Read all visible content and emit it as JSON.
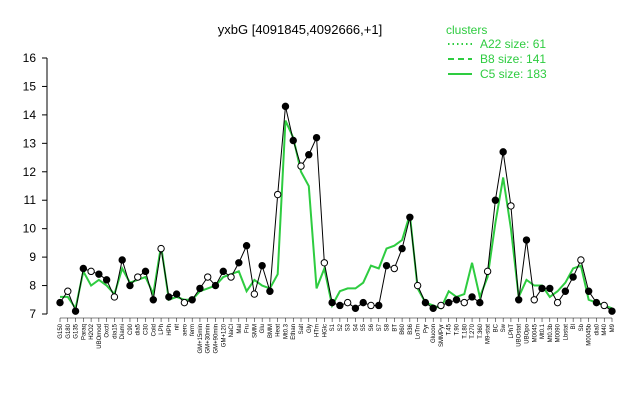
{
  "chart_data": {
    "type": "line",
    "title": "yxbG [4091845,4092666,+1]",
    "ylim": [
      7,
      16
    ],
    "yticks": [
      7,
      8,
      9,
      10,
      11,
      12,
      13,
      14,
      15,
      16
    ],
    "x_ticks": [
      "G150",
      "G180",
      "G135",
      "Paraq",
      "H2O2",
      "UBOmod",
      "Oxctl",
      "dia15",
      "Diami",
      "C90",
      "dia5",
      "C30",
      "Cold",
      "LPh",
      "HPh",
      "nit",
      "aero",
      "ferm",
      "GM+15min",
      "GM+30min",
      "GM+90min",
      "GM+120",
      "NaCl",
      "Mal",
      "Fru",
      "SMM",
      "Glu",
      "BMM",
      "Heat",
      "Mt0.3",
      "Ethan",
      "Salt",
      "Gly",
      "HTm",
      "HGlc",
      "S1",
      "S2",
      "S3",
      "S4",
      "S5",
      "S6",
      "S7",
      "S8",
      "BT",
      "B60",
      "B36",
      "LoTm",
      "Pyr",
      "Glucon",
      "SMMPyr",
      "T.45",
      "T.90",
      "T.180",
      "T.270",
      "T.360",
      "M9-stat",
      "BC",
      "Sw",
      "LPhT",
      "UBOstat",
      "UBOpo",
      "M0045",
      "Mt0.1",
      "Mt0.3b",
      "M0090",
      "Lbstat",
      "Bl",
      "Sb",
      "M0045b",
      "dia0",
      "M40",
      "M9"
    ],
    "x_tick_labels_shown": [
      "G150",
      "G180",
      "G135",
      "Paraq",
      "H2O2",
      "UBOmod",
      "Oxctl",
      "dia15",
      "Diami",
      "C90",
      "dia5",
      "C30",
      "Cold",
      "LPh",
      "HPh",
      "nit",
      "aero",
      "ferm",
      "GM+15min",
      "GM+30min",
      "GM+90min",
      "GM+120",
      "NaCl",
      "Mal",
      "Fru",
      "SMM",
      "Glu",
      "BMM",
      "Heat",
      "Mt0.3",
      "Ethan",
      "Salt",
      "Gly",
      "HTm",
      "HGlc",
      "S1",
      "S2",
      "S3",
      "S4",
      "S5",
      "S6",
      "S7",
      "S8",
      "BT",
      "B60",
      "B36",
      "LoTm",
      "Pyr",
      "Glucon",
      "SMMPyr",
      "T.45",
      "T.90",
      "T.180",
      "T.270",
      "T.360",
      "M9-stat",
      "BC",
      "Sw",
      "LPhT",
      "UBOstat",
      "UBOpo",
      "M0045",
      "Mt0.1",
      "Mt0.3b",
      "M0090",
      "Lbstat",
      "Bl",
      "Sb",
      "M0045b",
      "dia0",
      "M40",
      "M9"
    ],
    "legend": {
      "title": "clusters",
      "placement": "top-right",
      "entries": [
        {
          "label": "A22 size: 61",
          "style": "dotted"
        },
        {
          "label": "B8 size: 141",
          "style": "dashed"
        },
        {
          "label": "C5 size: 183",
          "style": "solid"
        }
      ]
    },
    "series": [
      {
        "name": "",
        "style": "black-points",
        "values": [
          7.4,
          7.8,
          7.1,
          8.6,
          8.5,
          8.4,
          8.2,
          7.6,
          8.9,
          8.0,
          8.3,
          8.5,
          7.5,
          9.3,
          7.6,
          7.7,
          7.4,
          7.5,
          7.9,
          8.3,
          8.0,
          8.5,
          8.3,
          8.8,
          9.4,
          7.7,
          8.7,
          7.8,
          11.2,
          14.3,
          13.1,
          12.2,
          12.6,
          13.2,
          8.8,
          7.4,
          7.3,
          7.4,
          7.2,
          7.4,
          7.3,
          7.3,
          8.7,
          8.6,
          9.3,
          10.4,
          8.0,
          7.4,
          7.2,
          7.3,
          7.4,
          7.5,
          7.4,
          7.6,
          7.4,
          8.5,
          11.0,
          12.7,
          10.8,
          7.5,
          9.6,
          7.5,
          7.9,
          7.9,
          7.4,
          7.8,
          8.3,
          8.9,
          7.8,
          7.4,
          7.3,
          7.1
        ]
      },
      {
        "name": "",
        "style": "green-cluster-line",
        "values": [
          7.6,
          7.6,
          7.2,
          8.5,
          8.0,
          8.2,
          8.0,
          7.7,
          8.6,
          8.1,
          8.2,
          8.3,
          7.7,
          9.4,
          7.5,
          7.6,
          7.5,
          7.5,
          7.8,
          7.9,
          8.0,
          8.3,
          8.4,
          8.5,
          7.8,
          8.2,
          8.0,
          7.9,
          8.4,
          13.8,
          13.2,
          12.0,
          11.5,
          7.9,
          8.6,
          7.3,
          7.8,
          7.9,
          7.9,
          8.1,
          8.7,
          8.6,
          9.3,
          9.4,
          9.6,
          10.5,
          7.9,
          7.4,
          7.3,
          7.2,
          7.8,
          7.6,
          7.7,
          8.8,
          7.6,
          8.3,
          10.2,
          11.8,
          10.0,
          7.6,
          8.2,
          8.0,
          8.0,
          7.6,
          7.8,
          8.1,
          8.6,
          8.7,
          7.5,
          7.4,
          7.3,
          7.2
        ]
      }
    ]
  }
}
